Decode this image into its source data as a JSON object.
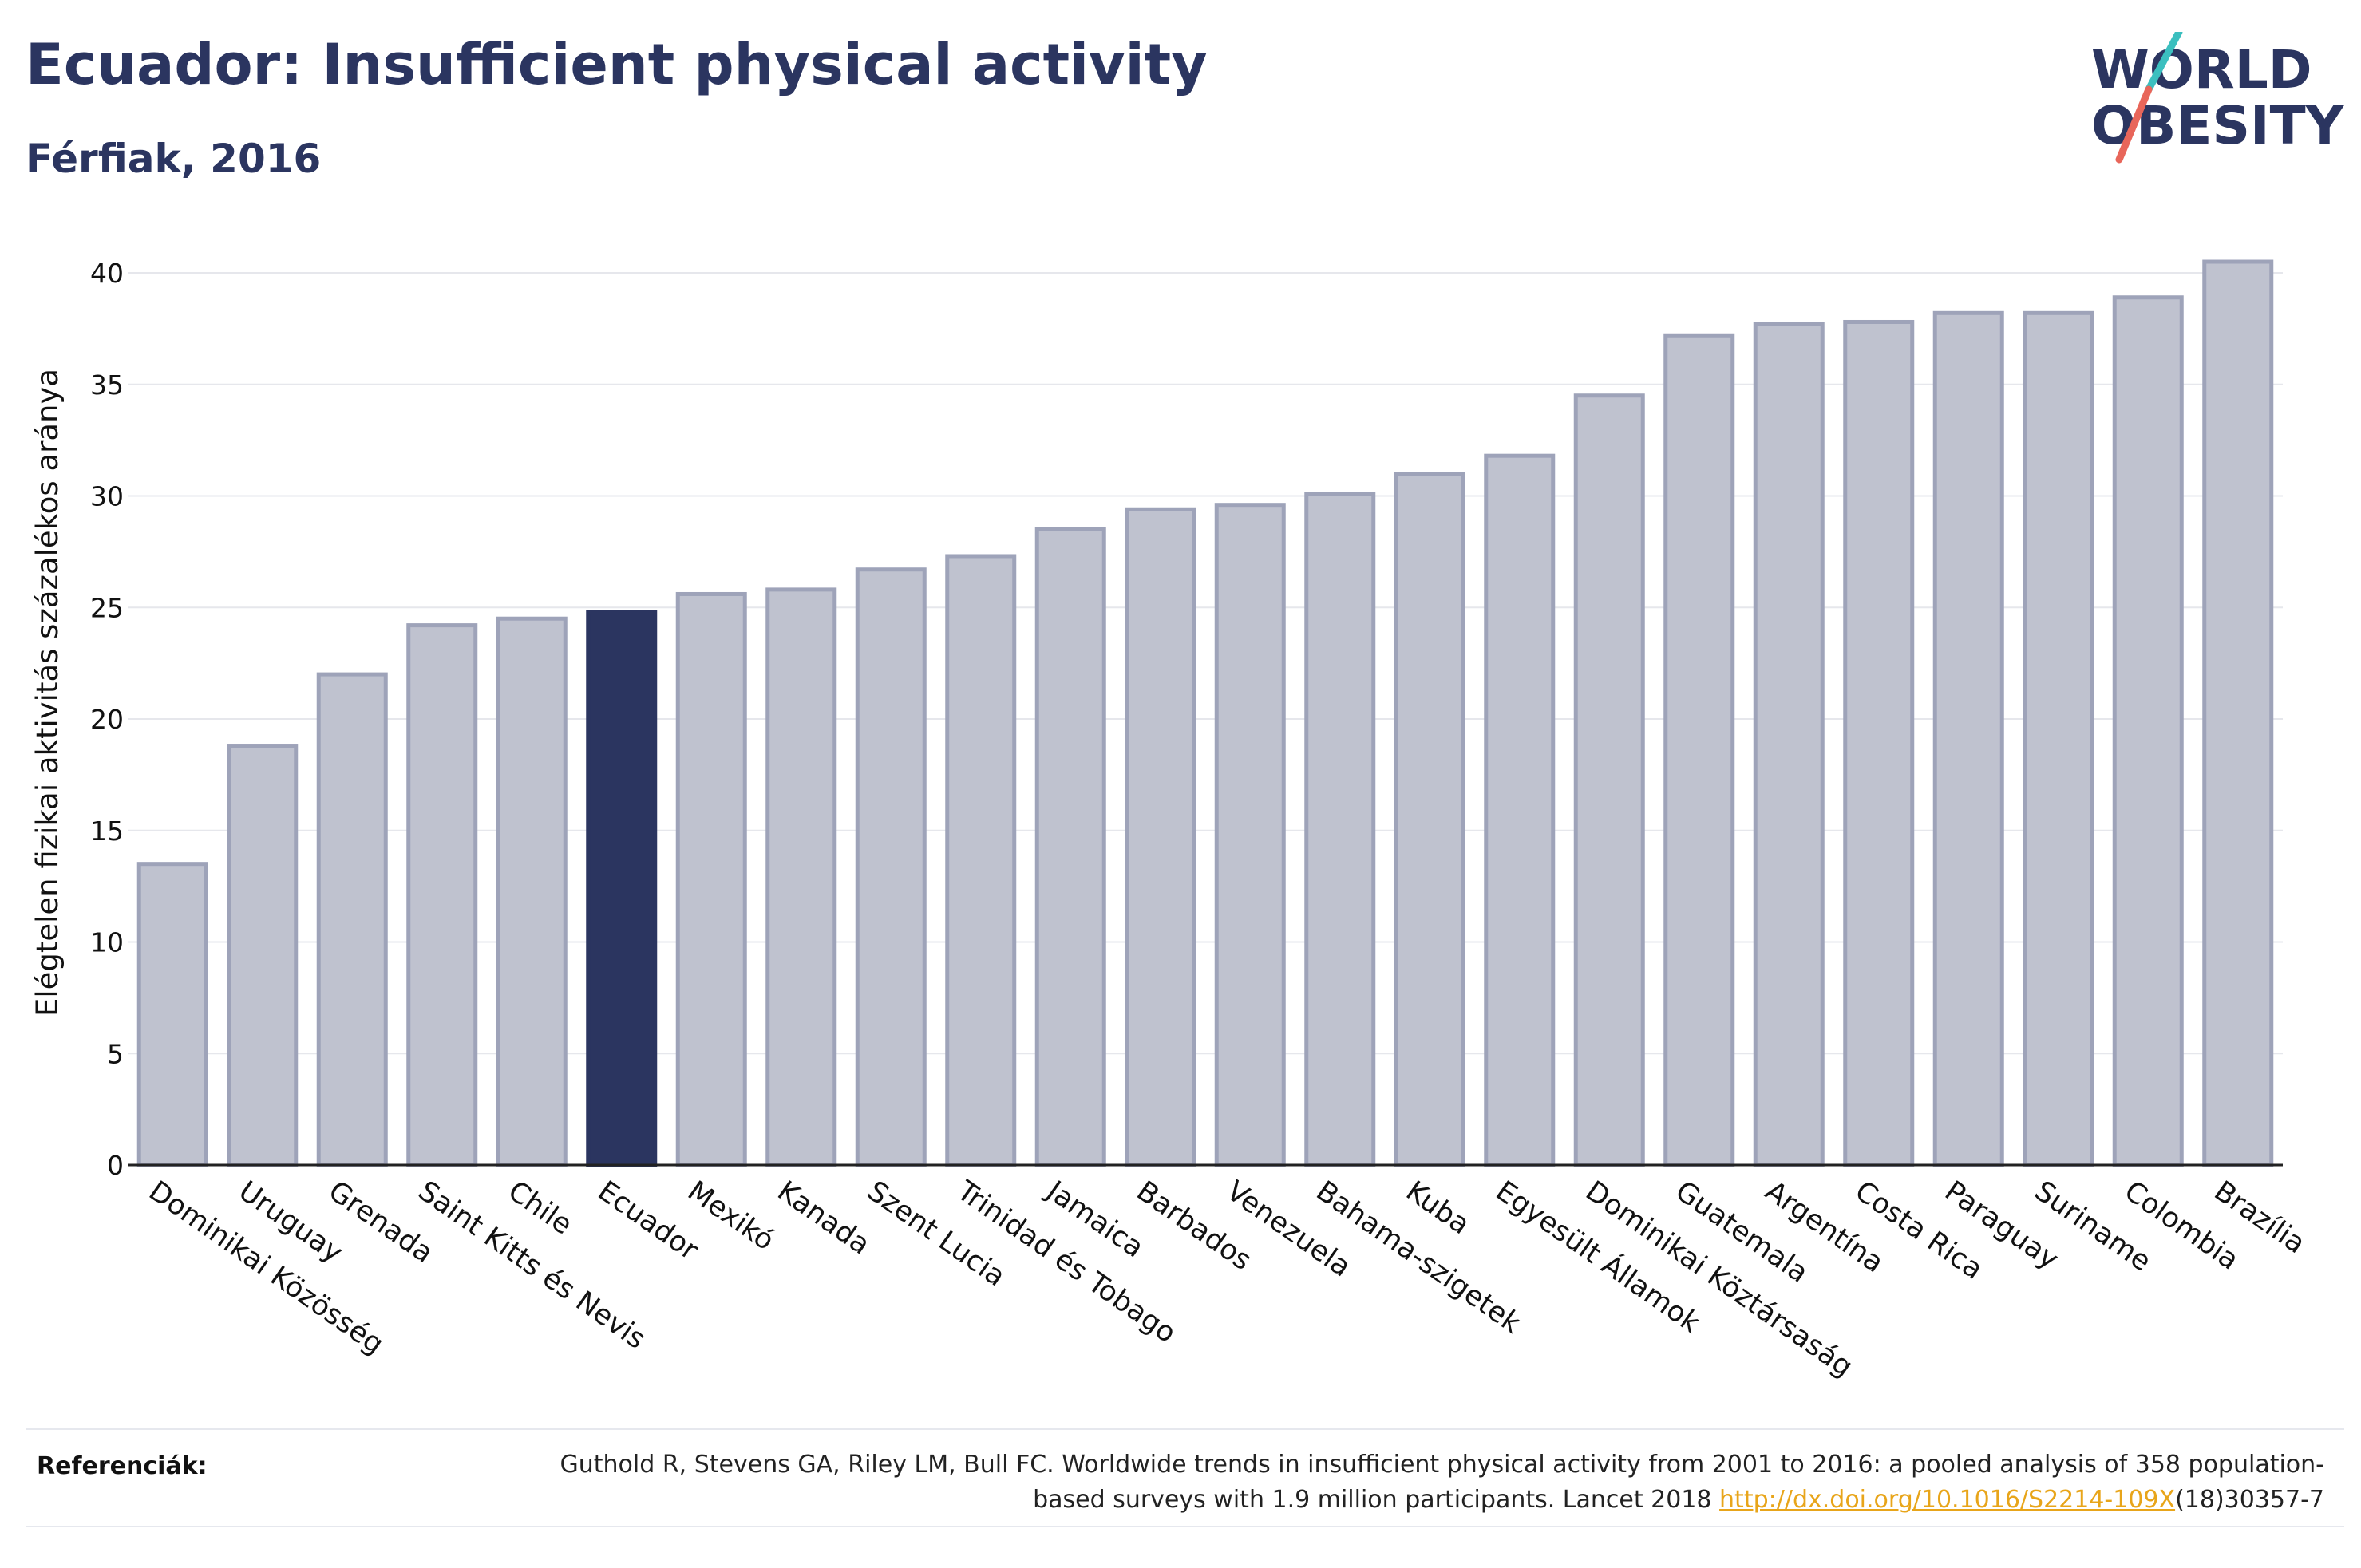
{
  "header": {
    "title": "Ecuador: Insufficient physical activity",
    "subtitle": "Férfiak, 2016"
  },
  "logo": {
    "line1": "WORLD",
    "line2": "OBESITY"
  },
  "chart_data": {
    "type": "bar",
    "ylabel": "Elégtelen fizikai aktivitás százalékos aránya",
    "ylim": [
      0,
      42
    ],
    "yticks": [
      0,
      5,
      10,
      15,
      20,
      25,
      30,
      35,
      40
    ],
    "grid": true,
    "highlight": "Ecuador",
    "categories": [
      "Dominikai Közösség",
      "Uruguay",
      "Grenada",
      "Saint Kitts és Nevis",
      "Chile",
      "Ecuador",
      "Mexikó",
      "Kanada",
      "Szent Lucia",
      "Trinidad és Tobago",
      "Jamaica",
      "Barbados",
      "Venezuela",
      "Bahama-szigetek",
      "Kuba",
      "Egyesült Államok",
      "Dominikai Köztársaság",
      "Guatemala",
      "Argentína",
      "Costa Rica",
      "Paraguay",
      "Suriname",
      "Colombia",
      "Brazília"
    ],
    "values": [
      13.5,
      18.8,
      22.0,
      24.2,
      24.5,
      24.8,
      25.6,
      25.8,
      26.7,
      27.3,
      28.5,
      29.4,
      29.6,
      30.1,
      31.0,
      31.8,
      34.5,
      37.2,
      37.7,
      37.8,
      38.2,
      38.2,
      38.9,
      40.5
    ],
    "colors": {
      "bar": "#bfc2cf",
      "bar_edge": "#9ea3b9",
      "highlight": "#2b3560"
    }
  },
  "references": {
    "label": "Referenciák:",
    "text_before": "Guthold R, Stevens GA, Riley LM, Bull FC. Worldwide trends in insufficient physical activity from 2001 to 2016: a pooled analysis of 358 population-based surveys with 1.9 million participants. Lancet 2018 ",
    "link": "http://dx.doi.org/10.1016/S2214-109X",
    "text_after": "(18)30357-7"
  }
}
